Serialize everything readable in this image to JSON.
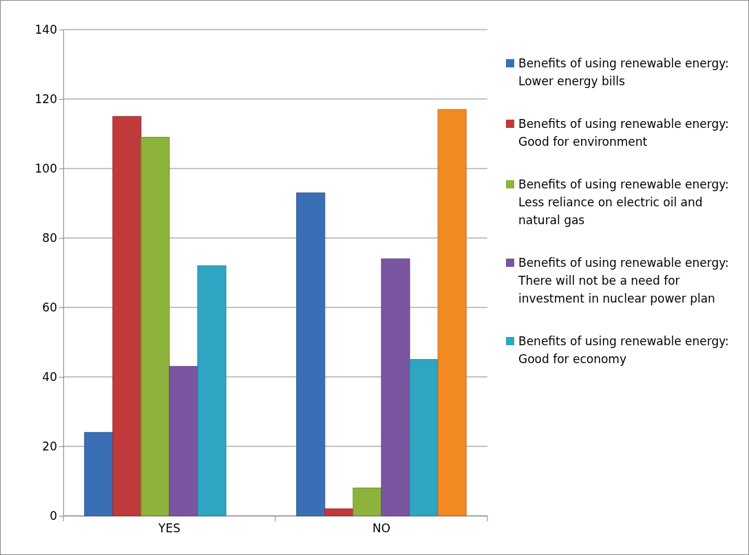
{
  "chart_data": {
    "type": "bar",
    "categories": [
      "YES",
      "NO"
    ],
    "series": [
      {
        "name": "Benefits of using renewable energy: Lower energy bills",
        "color": "#3a6fb5",
        "values": [
          24,
          93
        ]
      },
      {
        "name": "Benefits of using renewable energy: Good for environment",
        "color": "#c0393b",
        "values": [
          115,
          2
        ]
      },
      {
        "name": "Benefits of using renewable energy: Less reliance on electric oil and natural gas",
        "color": "#8db33c",
        "values": [
          109,
          8
        ]
      },
      {
        "name": "Benefits of using renewable energy: There will not be a need for investment in nuclear power plan",
        "color": "#7a55a0",
        "values": [
          43,
          74
        ]
      },
      {
        "name": "Benefits of using renewable energy: Good for economy",
        "color": "#2ea5c2",
        "values": [
          72,
          45
        ]
      },
      {
        "color": "#f28a22",
        "values": [
          null,
          117
        ]
      }
    ],
    "ylim": [
      0,
      140
    ],
    "yticks": [
      0,
      20,
      40,
      60,
      80,
      100,
      120,
      140
    ],
    "grid": "y",
    "legend": "right"
  }
}
